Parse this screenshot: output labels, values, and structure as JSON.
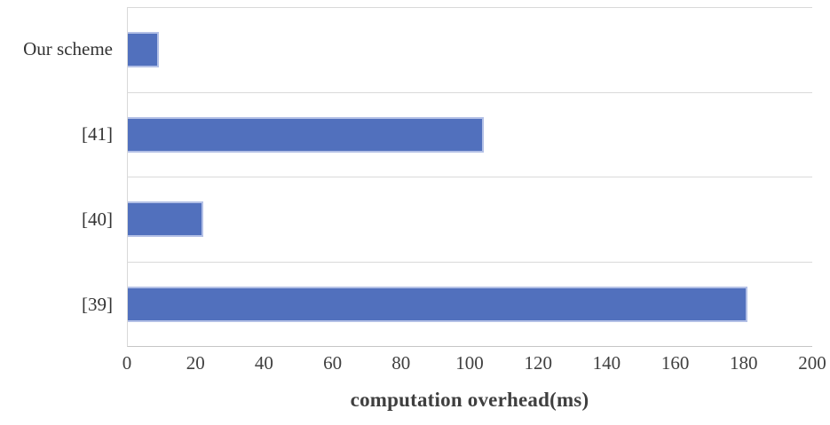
{
  "chart_data": {
    "type": "bar",
    "orientation": "horizontal",
    "title": "",
    "xlabel": "computation overhead(ms)",
    "ylabel": "",
    "categories": [
      "Our scheme",
      "[41]",
      "[40]",
      "[39]"
    ],
    "values": [
      9,
      104,
      22,
      181
    ],
    "xlim": [
      0,
      200
    ],
    "xticks": [
      0,
      20,
      40,
      60,
      80,
      100,
      120,
      140,
      160,
      180,
      200
    ],
    "grid": "horizontal band boundaries on, vertical off",
    "legend_position": "none",
    "colors": {
      "bar_fill": "#5170bd",
      "bar_edge": "#b3c0e6",
      "gridline": "#d9d9d9",
      "axis_line": "#c6c6c6",
      "tick_label": "#404040",
      "category_label": "#333333",
      "axis_title": "#3f3f3f",
      "background": "#ffffff"
    }
  }
}
